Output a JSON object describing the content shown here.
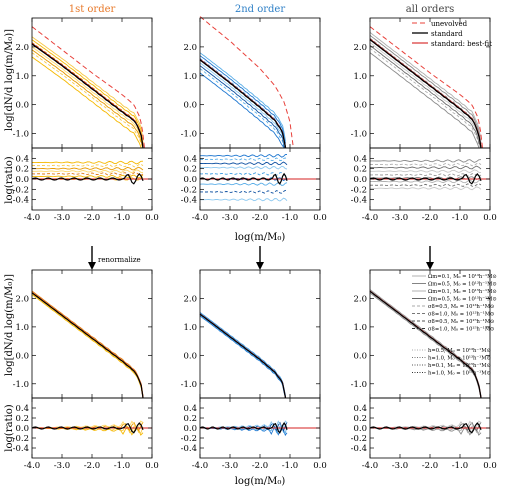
{
  "columns": [
    {
      "title": "1st order",
      "color": "#e8792a"
    },
    {
      "title": "2nd order",
      "color": "#2f80c7"
    },
    {
      "title": "all orders",
      "color": "#444444"
    }
  ],
  "arrow_label": "renormalize",
  "y_label_main": "log[dN/d log(m/M₀)]",
  "y_label_ratio": "log(ratio)",
  "x_label": "log(m/M₀)",
  "legend_top": [
    "unevolved",
    "standard",
    "standard: best-fit"
  ],
  "legend_bottom": [
    "Ωm=0.1, M₀ = 10¹³h⁻¹M⊙",
    "Ωm=0.5, M₀ = 10¹³h⁻¹M⊙",
    "Ωm=0.1, M₀ = 10¹⁵h⁻¹M⊙",
    "Ωm=0.5, M₀ = 10¹⁵h⁻¹M⊙",
    "σ8=0.5, M₀ = 10¹³h⁻¹M⊙",
    "σ8=1.0, M₀ = 10¹³h⁻¹M⊙",
    "σ8=0.5, M₀ = 10¹⁵h⁻¹M⊙",
    "σ8=1.0, M₀ = 10¹⁵h⁻¹M⊙",
    "h=0.5, M₀ = 10¹³h⁻¹M⊙",
    "h=1.0, M₀ = 10¹³h⁻¹M⊙",
    "h=0.1, M₀ = 10¹⁵h⁻¹M⊙",
    "h=1.0, M₀ = 10¹⁵h⁻¹M⊙"
  ],
  "chart_data": {
    "type": "line",
    "xlim": [
      -4.0,
      0.0
    ],
    "x_ticks": [
      -4.0,
      -3.0,
      -2.0,
      -1.0,
      0.0
    ],
    "main_ylim": [
      -1.5,
      3.0
    ],
    "main_y_ticks": [
      -1.0,
      0.0,
      1.0,
      2.0
    ],
    "ratio_ylim": [
      -0.6,
      0.6
    ],
    "ratio_y_ticks": [
      -0.4,
      -0.2,
      0.0,
      0.2,
      0.4
    ],
    "top_unevolved": {
      "x": [
        -4.0,
        -3.0,
        -2.0,
        -1.0,
        -0.6,
        -0.4,
        -0.3,
        -0.25
      ],
      "y": [
        2.7,
        1.9,
        1.1,
        0.35,
        0.0,
        -0.45,
        -1.0,
        -1.5
      ]
    },
    "top_unevolved_2nd": {
      "x": [
        -4.0,
        -3.0,
        -2.0,
        -1.5,
        -1.2,
        -1.0,
        -0.9
      ],
      "y": [
        3.05,
        2.2,
        1.25,
        0.65,
        0.1,
        -0.6,
        -1.4
      ]
    },
    "top_standard_1st": {
      "x": [
        -4.0,
        -3.0,
        -2.0,
        -1.0,
        -0.6,
        -0.45,
        -0.35,
        -0.3
      ],
      "y": [
        2.1,
        1.35,
        0.55,
        -0.25,
        -0.55,
        -0.8,
        -1.1,
        -1.5
      ]
    },
    "top_standard_2nd": {
      "x": [
        -4.0,
        -3.0,
        -2.0,
        -1.5,
        -1.25,
        -1.15
      ],
      "y": [
        1.55,
        0.75,
        -0.1,
        -0.55,
        -0.95,
        -1.5
      ]
    },
    "top_standard_all": {
      "x": [
        -4.0,
        -3.0,
        -2.0,
        -1.0,
        -0.6,
        -0.45,
        -0.35,
        -0.3
      ],
      "y": [
        2.25,
        1.45,
        0.65,
        -0.15,
        -0.5,
        -0.8,
        -1.15,
        -1.5
      ]
    },
    "bottom_renorm_1st": {
      "x": [
        -4.0,
        -3.0,
        -2.0,
        -1.0,
        -0.6,
        -0.45,
        -0.35,
        -0.3
      ],
      "y": [
        2.2,
        1.4,
        0.6,
        -0.2,
        -0.55,
        -0.8,
        -1.1,
        -1.5
      ]
    },
    "bottom_renorm_2nd": {
      "x": [
        -4.0,
        -3.0,
        -2.0,
        -1.5,
        -1.25,
        -1.15
      ],
      "y": [
        1.45,
        0.65,
        -0.15,
        -0.6,
        -0.95,
        -1.5
      ]
    },
    "bottom_renorm_all": {
      "x": [
        -4.0,
        -3.0,
        -2.0,
        -1.0,
        -0.6,
        -0.45,
        -0.35,
        -0.3
      ],
      "y": [
        2.25,
        1.45,
        0.65,
        -0.15,
        -0.5,
        -0.8,
        -1.15,
        -1.5
      ]
    },
    "ratio_top_1st_levels": [
      0.32,
      0.26,
      0.2,
      0.15,
      0.1,
      0.05,
      0.0
    ],
    "ratio_top_2nd_levels": [
      0.45,
      0.38,
      0.3,
      0.22,
      0.1,
      0.0,
      -0.1,
      -0.25,
      -0.4
    ],
    "ratio_top_all_levels": [
      0.35,
      0.28,
      0.22,
      0.15,
      0.08,
      0.02,
      -0.05,
      -0.12,
      -0.18
    ],
    "ratio_top_xend": [
      -0.3,
      -1.1,
      -0.3
    ]
  }
}
